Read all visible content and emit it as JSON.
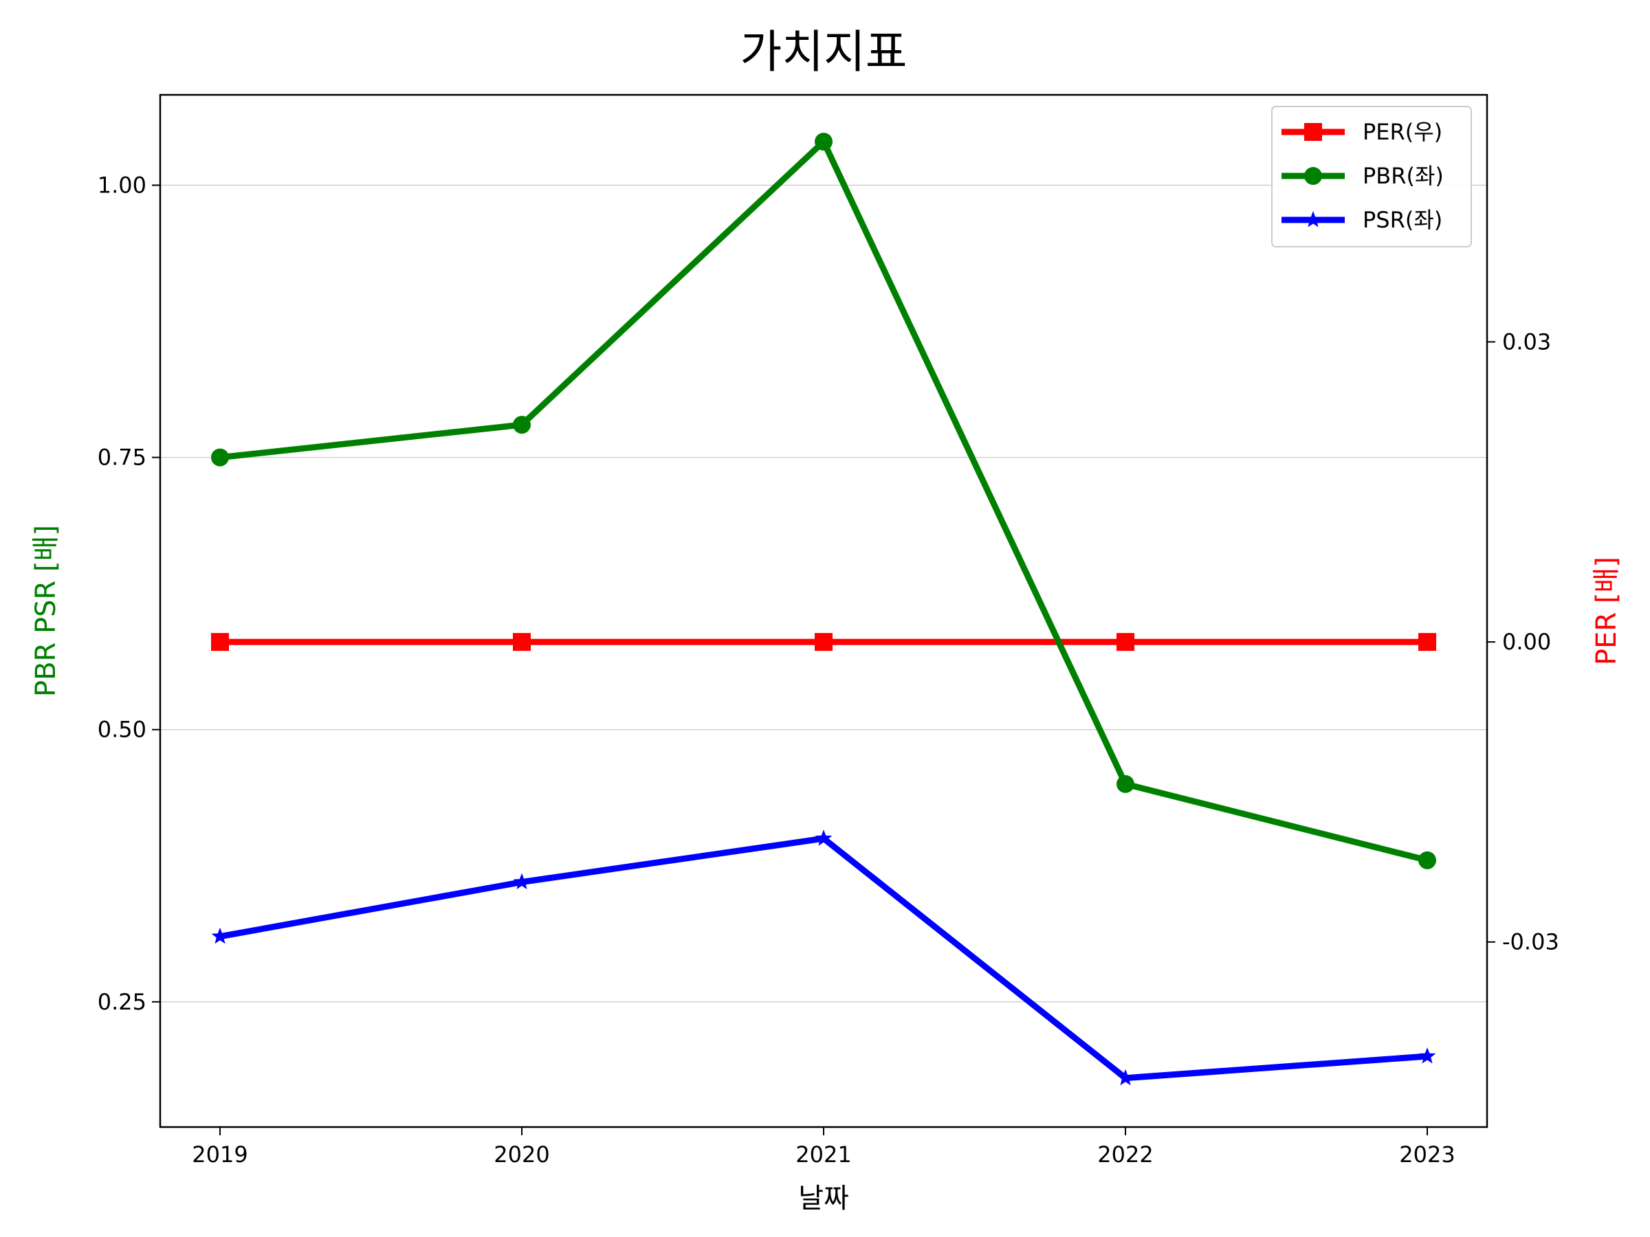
{
  "chart_data": {
    "type": "line",
    "title": "가치지표",
    "xlabel": "날짜",
    "ylabel_left": "PBR PSR [배]",
    "ylabel_right": "PER [배]",
    "categories": [
      "2019",
      "2020",
      "2021",
      "2022",
      "2023"
    ],
    "ylim_left": [
      0.135,
      1.083
    ],
    "ylim_right": [
      -0.0485,
      0.0547
    ],
    "yticks_left": [
      "0.25",
      "0.50",
      "0.75",
      "1.00"
    ],
    "yticks_left_values": [
      0.25,
      0.5,
      0.75,
      1.0
    ],
    "yticks_right": [
      "-0.03",
      "0.00",
      "0.03"
    ],
    "yticks_right_values": [
      -0.03,
      0.0,
      0.03
    ],
    "grid": "horizontal (left axis)",
    "legend_position": "top-right",
    "series": [
      {
        "name": "PER(우)",
        "axis": "right",
        "color": "#ff0000",
        "marker": "square",
        "values": [
          0.0,
          0.0,
          0.0,
          0.0,
          0.0
        ]
      },
      {
        "name": "PBR(좌)",
        "axis": "left",
        "color": "#008000",
        "marker": "circle",
        "values": [
          0.75,
          0.78,
          1.04,
          0.45,
          0.38
        ]
      },
      {
        "name": "PSR(좌)",
        "axis": "left",
        "color": "#0000ff",
        "marker": "star",
        "values": [
          0.31,
          0.36,
          0.4,
          0.18,
          0.2
        ]
      }
    ],
    "colors": {
      "left_axis_label": "#008000",
      "right_axis_label": "#ff0000"
    }
  }
}
